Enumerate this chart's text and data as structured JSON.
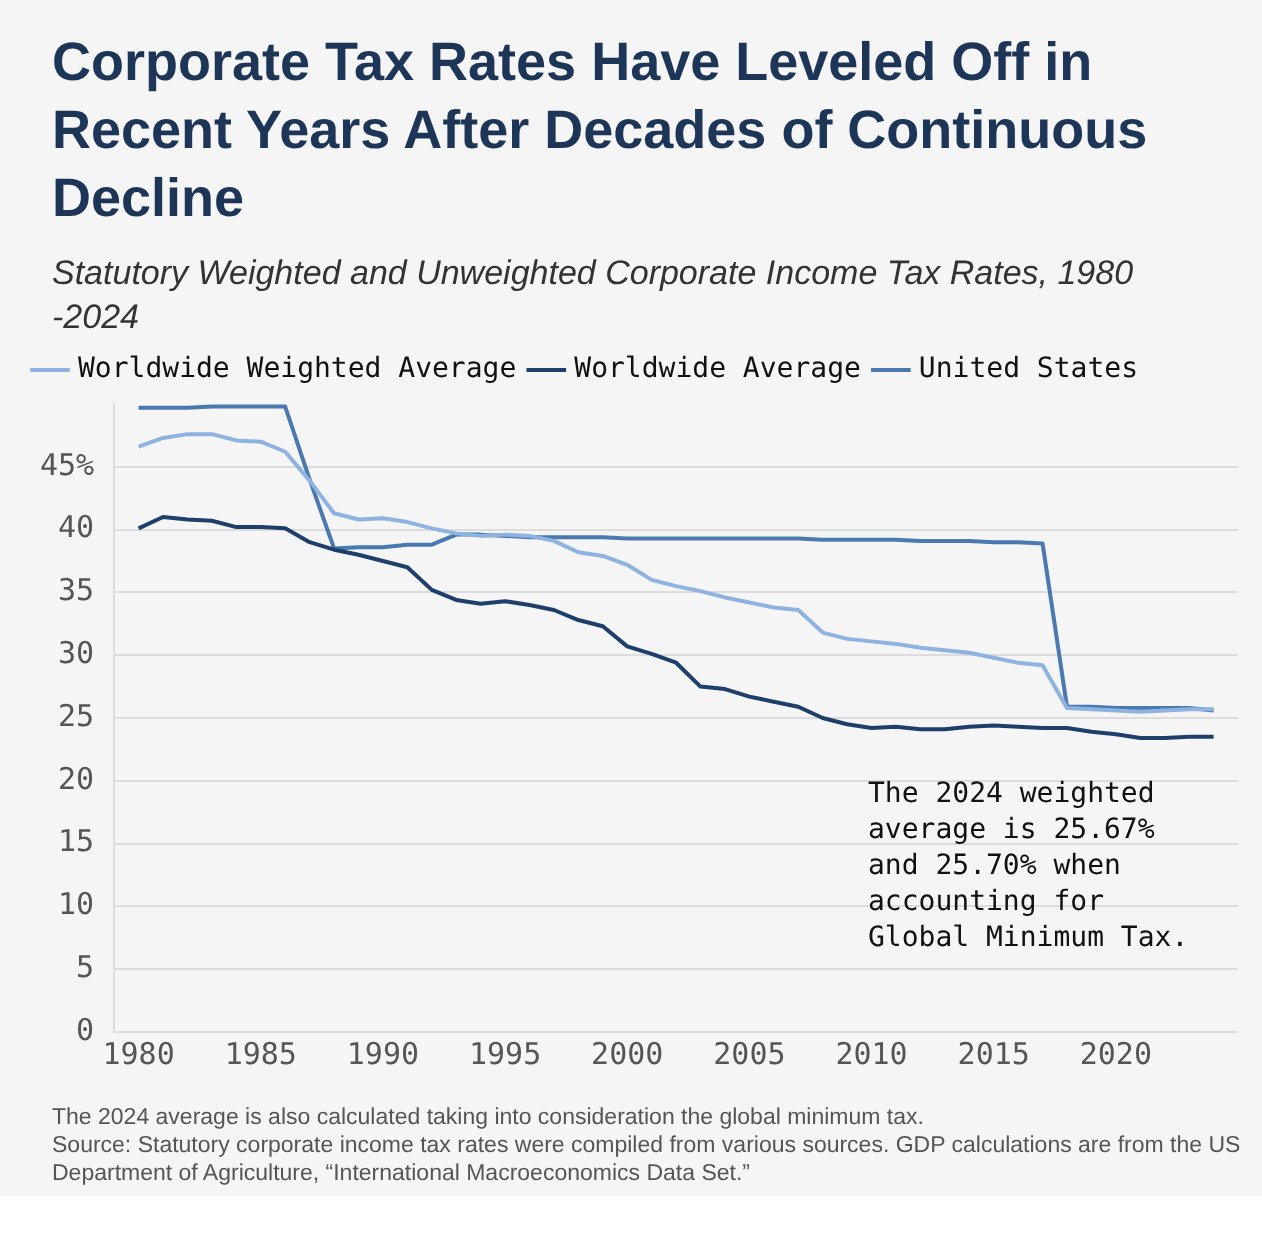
{
  "chart_data": {
    "type": "line",
    "title": "Corporate Tax Rates Have Leveled Off in Recent Years After Decades of Continuous Decline",
    "subtitle": "Statutory Weighted and Unweighted Corporate Income Tax Rates, 1980 -2024",
    "x": [
      1980,
      1981,
      1982,
      1983,
      1984,
      1985,
      1986,
      1987,
      1988,
      1989,
      1990,
      1991,
      1992,
      1993,
      1994,
      1995,
      1996,
      1997,
      1998,
      1999,
      2000,
      2001,
      2002,
      2003,
      2004,
      2005,
      2006,
      2007,
      2008,
      2009,
      2010,
      2011,
      2012,
      2013,
      2014,
      2015,
      2016,
      2017,
      2018,
      2019,
      2020,
      2021,
      2022,
      2023,
      2024
    ],
    "series": [
      {
        "name": "Worldwide Weighted Average",
        "color": "#8fb3e0",
        "values": [
          46.6,
          47.3,
          47.6,
          47.6,
          47.1,
          47.0,
          46.2,
          43.9,
          41.3,
          40.8,
          40.9,
          40.6,
          40.1,
          39.7,
          39.5,
          39.6,
          39.5,
          39.1,
          38.2,
          37.9,
          37.2,
          36.0,
          35.5,
          35.1,
          34.6,
          34.2,
          33.8,
          33.6,
          31.8,
          31.3,
          31.1,
          30.9,
          30.6,
          30.4,
          30.2,
          29.8,
          29.4,
          29.2,
          25.8,
          25.7,
          25.6,
          25.5,
          25.6,
          25.7,
          25.7
        ]
      },
      {
        "name": "Worldwide Average",
        "color": "#1f3f6b",
        "values": [
          40.1,
          41.0,
          40.8,
          40.7,
          40.2,
          40.2,
          40.1,
          39.0,
          38.4,
          38.0,
          37.5,
          37.0,
          35.2,
          34.4,
          34.1,
          34.3,
          34.0,
          33.6,
          32.8,
          32.3,
          30.7,
          30.1,
          29.4,
          27.5,
          27.3,
          26.7,
          26.3,
          25.9,
          25.0,
          24.5,
          24.2,
          24.3,
          24.1,
          24.1,
          24.3,
          24.4,
          24.3,
          24.2,
          24.2,
          23.9,
          23.7,
          23.4,
          23.4,
          23.5,
          23.5
        ]
      },
      {
        "name": "United States",
        "color": "#4a78b0",
        "values": [
          49.7,
          49.7,
          49.7,
          49.8,
          49.8,
          49.8,
          49.8,
          44.0,
          38.5,
          38.6,
          38.6,
          38.8,
          38.8,
          39.6,
          39.6,
          39.5,
          39.4,
          39.4,
          39.4,
          39.4,
          39.3,
          39.3,
          39.3,
          39.3,
          39.3,
          39.3,
          39.3,
          39.3,
          39.2,
          39.2,
          39.2,
          39.2,
          39.1,
          39.1,
          39.1,
          39.0,
          39.0,
          38.9,
          25.9,
          25.9,
          25.8,
          25.8,
          25.8,
          25.8,
          25.6
        ]
      }
    ],
    "xlim": [
      1979,
      2025
    ],
    "xticks": [
      1980,
      1985,
      1990,
      1995,
      2000,
      2005,
      2010,
      2015,
      2020
    ],
    "ylim": [
      0,
      50
    ],
    "yticks": [
      0,
      5,
      10,
      15,
      20,
      25,
      30,
      35,
      40,
      {
        "value": 45,
        "label": "45%"
      }
    ],
    "grid": "y",
    "legend": "top left",
    "marker": "none",
    "line_style": "solid",
    "annotations": [
      "The 2024 weighted average is 25.67% and 25.70% when accounting for Global Minimum Tax.",
      "The 2024 average is also calculated taking into consideration the global minimum tax.",
      "Source: Statutory corporate income tax rates were compiled from various sources. GDP calculations are from the US Department of Agriculture, “International Macroeconomics Data Set.”"
    ]
  }
}
